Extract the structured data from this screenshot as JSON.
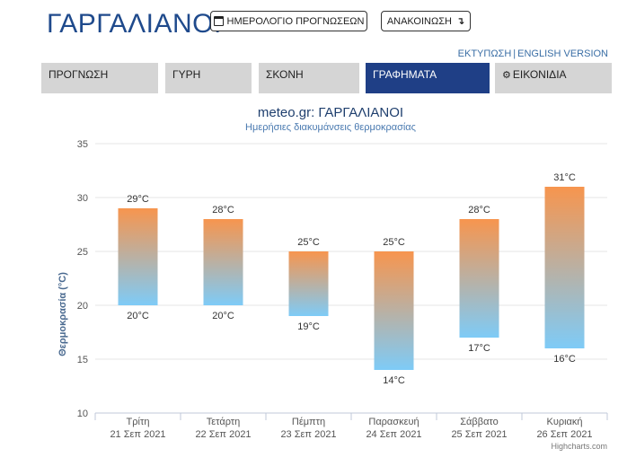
{
  "header": {
    "city": "ΓΑΡΓΑΛΙΑΝΟΙ",
    "calendar_button": "ΗΜΕΡΟΛΟΓΙΟ ΠΡΟΓΝΩΣΕΩΝ",
    "announcement_button": "ΑΝΑΚΟΙΝΩΣΗ",
    "icons": {
      "calendar": "calendar-icon",
      "announcement": "return-arrow-icon"
    }
  },
  "utility": {
    "print": "ΕΚΤΥΠΩΣΗ",
    "separator": "|",
    "english": "ENGLISH VERSION"
  },
  "tabs": [
    {
      "label": "ΠΡΟΓΝΩΣΗ",
      "active": false
    },
    {
      "label": "ΓΥΡΗ",
      "active": false
    },
    {
      "label": "ΣΚΟΝΗ",
      "active": false
    },
    {
      "label": "ΓΡΑΦΗΜΑΤΑ",
      "active": true
    },
    {
      "label": "ΕΙΚΟΝΙΔΙΑ",
      "active": false,
      "icon": "gear-icon"
    }
  ],
  "colors": {
    "brand": "#1f4a8c",
    "tab_active": "#1f3f86",
    "tab_inactive": "#d5d5d5",
    "bar_top": "#f7954e",
    "bar_bottom": "#7ecbf7"
  },
  "chart_data": {
    "type": "columnrange",
    "title": "meteo.gr: ΓΑΡΓΑΛΙΑΝΟΙ",
    "subtitle": "Ημερήσιες διακυμάνσεις θερμοκρασίας",
    "ylabel": "Θερμοκρασία (°C)",
    "ylim": [
      10,
      35
    ],
    "yticks": [
      10,
      15,
      20,
      25,
      30,
      35
    ],
    "grid": true,
    "credit": "Highcharts.com",
    "categories": [
      [
        "Τρίτη",
        "21 Σεπ 2021"
      ],
      [
        "Τετάρτη",
        "22 Σεπ 2021"
      ],
      [
        "Πέμπτη",
        "23 Σεπ 2021"
      ],
      [
        "Παρασκευή",
        "24 Σεπ 2021"
      ],
      [
        "Σάββατο",
        "25 Σεπ 2021"
      ],
      [
        "Κυριακή",
        "26 Σεπ 2021"
      ]
    ],
    "low": [
      20,
      20,
      19,
      14,
      17,
      16
    ],
    "high": [
      29,
      28,
      25,
      25,
      28,
      31
    ],
    "low_labels": [
      "20°C",
      "20°C",
      "19°C",
      "14°C",
      "17°C",
      "16°C"
    ],
    "high_labels": [
      "29°C",
      "28°C",
      "25°C",
      "25°C",
      "28°C",
      "31°C"
    ]
  }
}
